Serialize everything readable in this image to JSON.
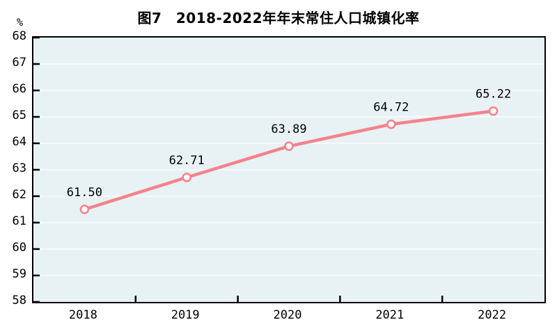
{
  "chart_data": {
    "type": "line",
    "title": "图7　2018-2022年年末常住人口城镇化率",
    "ylabel_unit": "%",
    "categories": [
      "2018",
      "2019",
      "2020",
      "2021",
      "2022"
    ],
    "values": [
      61.5,
      62.71,
      63.89,
      64.72,
      65.22
    ],
    "data_labels": [
      "61.50",
      "62.71",
      "63.89",
      "64.72",
      "65.22"
    ],
    "ylim": [
      58,
      68
    ],
    "ytick_step": 1,
    "grid": "horizontal-faint-white",
    "legend": "none",
    "colors": {
      "line": "#F4838B",
      "marker_fill": "#FFFFFF",
      "plot_background": "#E8F2F4",
      "gridline": "#FFFFFF",
      "axis": "#000000",
      "text": "#000000"
    }
  }
}
